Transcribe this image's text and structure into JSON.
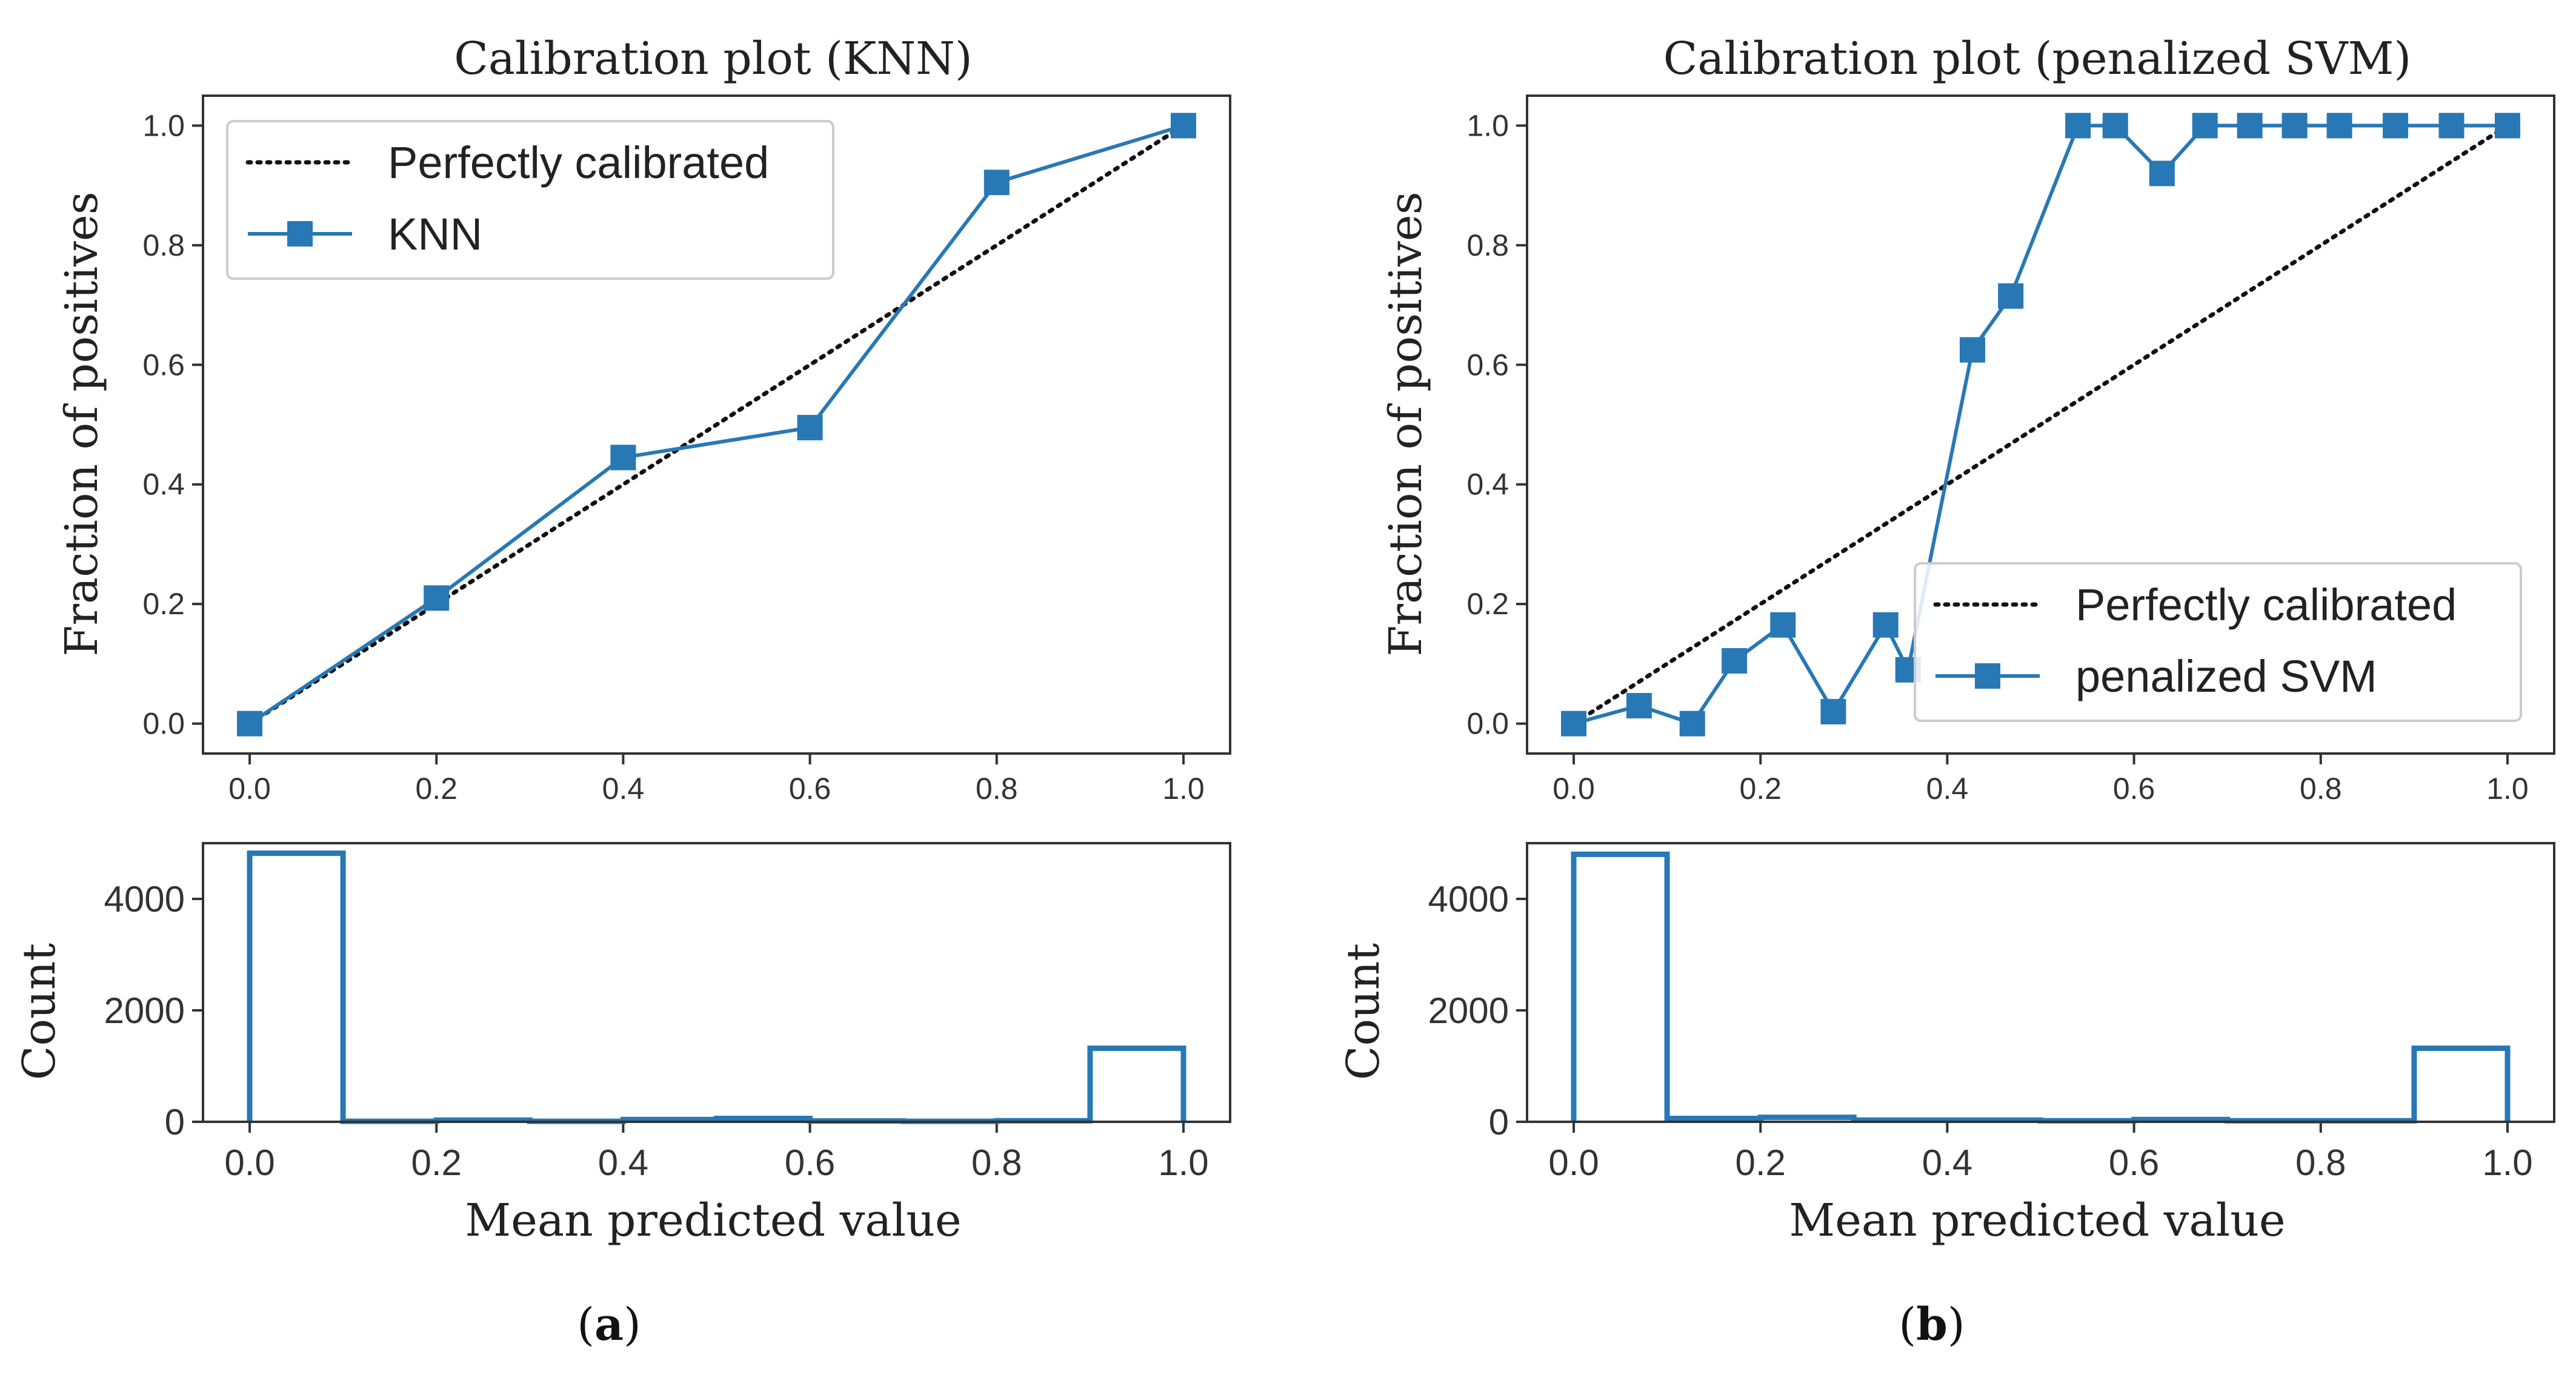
{
  "chart_data": [
    {
      "type": "line",
      "panel": "a",
      "title": "Calibration plot (KNN)",
      "ylabel": "Fraction of positives",
      "xlabel": "",
      "xlim": [
        0.0,
        1.0
      ],
      "ylim": [
        0.0,
        1.0
      ],
      "xticks": [
        "0.0",
        "0.2",
        "0.4",
        "0.6",
        "0.8",
        "1.0"
      ],
      "yticks": [
        "0.0",
        "0.2",
        "0.4",
        "0.6",
        "0.8",
        "1.0"
      ],
      "legend_position": "top-left",
      "series": [
        {
          "name": "Perfectly calibrated",
          "style": "dotted",
          "color": "#111111",
          "x": [
            0.0,
            1.0
          ],
          "y": [
            0.0,
            1.0
          ]
        },
        {
          "name": "KNN",
          "style": "line-square",
          "color": "#2878b5",
          "x": [
            0.0,
            0.2,
            0.4,
            0.6,
            0.8,
            1.0
          ],
          "y": [
            0.0,
            0.21,
            0.445,
            0.495,
            0.905,
            1.0
          ]
        }
      ]
    },
    {
      "type": "line",
      "panel": "b",
      "title": "Calibration plot (penalized SVM)",
      "ylabel": "Fraction of positives",
      "xlabel": "",
      "xlim": [
        0.0,
        1.0
      ],
      "ylim": [
        0.0,
        1.0
      ],
      "xticks": [
        "0.0",
        "0.2",
        "0.4",
        "0.6",
        "0.8",
        "1.0"
      ],
      "yticks": [
        "0.0",
        "0.2",
        "0.4",
        "0.6",
        "0.8",
        "1.0"
      ],
      "legend_position": "bottom-right",
      "series": [
        {
          "name": "Perfectly calibrated",
          "style": "dotted",
          "color": "#111111",
          "x": [
            0.0,
            1.0
          ],
          "y": [
            0.0,
            1.0
          ]
        },
        {
          "name": "penalized SVM",
          "style": "line-square",
          "color": "#2878b5",
          "x": [
            0.0,
            0.07,
            0.127,
            0.172,
            0.224,
            0.278,
            0.334,
            0.358,
            0.427,
            0.468,
            0.54,
            0.58,
            0.63,
            0.676,
            0.724,
            0.772,
            0.82,
            0.88,
            0.94,
            1.0
          ],
          "y": [
            0.0,
            0.03,
            0.0,
            0.105,
            0.165,
            0.02,
            0.165,
            0.09,
            0.625,
            0.715,
            1.0,
            1.0,
            0.92,
            1.0,
            1.0,
            1.0,
            1.0,
            1.0,
            1.0,
            1.0
          ]
        }
      ]
    },
    {
      "type": "bar",
      "panel": "a",
      "subtype": "step-histogram",
      "title": "",
      "xlabel": "Mean predicted value",
      "ylabel": "Count",
      "xlim": [
        0.0,
        1.0
      ],
      "ylim": [
        0,
        5000
      ],
      "xticks": [
        "0.0",
        "0.2",
        "0.4",
        "0.6",
        "0.8",
        "1.0"
      ],
      "yticks": [
        "0",
        "2000",
        "4000"
      ],
      "bin_edges": [
        0.0,
        0.1,
        0.2,
        0.3,
        0.4,
        0.5,
        0.6,
        0.7,
        0.8,
        0.9,
        1.0
      ],
      "values": [
        4820,
        10,
        30,
        10,
        40,
        60,
        15,
        10,
        20,
        1320
      ],
      "color": "#2878b5"
    },
    {
      "type": "bar",
      "panel": "b",
      "subtype": "step-histogram",
      "title": "",
      "xlabel": "Mean predicted value",
      "ylabel": "Count",
      "xlim": [
        0.0,
        1.0
      ],
      "ylim": [
        0,
        5000
      ],
      "xticks": [
        "0.0",
        "0.2",
        "0.4",
        "0.6",
        "0.8",
        "1.0"
      ],
      "yticks": [
        "0",
        "2000",
        "4000"
      ],
      "bin_edges": [
        0.0,
        0.1,
        0.2,
        0.3,
        0.4,
        0.5,
        0.6,
        0.7,
        0.8,
        0.9,
        1.0
      ],
      "values": [
        4800,
        60,
        80,
        30,
        30,
        20,
        40,
        20,
        20,
        1320
      ],
      "color": "#2878b5"
    }
  ],
  "captions": [
    {
      "open": "(",
      "letter": "a",
      "close": ")"
    },
    {
      "open": "(",
      "letter": "b",
      "close": ")"
    }
  ]
}
